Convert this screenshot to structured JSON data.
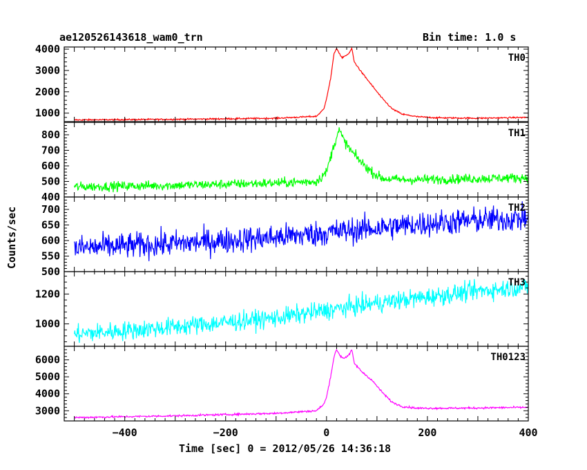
{
  "header": {
    "title": "ae120526143618_wam0_trn",
    "bin_time": "Bin time: 1.0 s"
  },
  "chart_data": {
    "type": "line",
    "xlabel": "Time [sec] 0 = 2012/05/26 14:36:18",
    "ylabel": "Counts/sec",
    "xlim": [
      -520,
      400
    ],
    "xticks": [
      -400,
      -200,
      0,
      200,
      400
    ],
    "xtick_labels": [
      "−400",
      "−200",
      "0",
      "200",
      "400"
    ],
    "line_width_note": "",
    "panels": [
      {
        "name": "TH0",
        "color": "#ff0000",
        "ylim": [
          600,
          4100
        ],
        "yticks": [
          1000,
          2000,
          3000,
          4000
        ],
        "ytick_labels": [
          "1000",
          "2000",
          "3000",
          "4000"
        ],
        "baseline": [
          [
            -500,
            680
          ],
          [
            -200,
            740
          ],
          [
            -50,
            800
          ],
          [
            -10,
            950
          ]
        ],
        "noise": 25,
        "curve": [
          [
            -500,
            680
          ],
          [
            -300,
            710
          ],
          [
            -100,
            760
          ],
          [
            -20,
            850
          ],
          [
            -5,
            1200
          ],
          [
            0,
            1700
          ],
          [
            8,
            2600
          ],
          [
            15,
            3800
          ],
          [
            20,
            4050
          ],
          [
            25,
            3800
          ],
          [
            30,
            3600
          ],
          [
            38,
            3700
          ],
          [
            45,
            3800
          ],
          [
            50,
            4050
          ],
          [
            55,
            3400
          ],
          [
            70,
            2900
          ],
          [
            90,
            2300
          ],
          [
            110,
            1700
          ],
          [
            130,
            1200
          ],
          [
            150,
            950
          ],
          [
            180,
            830
          ],
          [
            220,
            780
          ],
          [
            300,
            760
          ],
          [
            400,
            800
          ]
        ]
      },
      {
        "name": "TH1",
        "color": "#00ff00",
        "ylim": [
          400,
          880
        ],
        "yticks": [
          400,
          500,
          600,
          700,
          800
        ],
        "ytick_labels": [
          "400",
          "500",
          "600",
          "700",
          "800"
        ],
        "noise": 22,
        "curve": [
          [
            -500,
            465
          ],
          [
            -300,
            475
          ],
          [
            -100,
            490
          ],
          [
            -20,
            500
          ],
          [
            0,
            560
          ],
          [
            10,
            680
          ],
          [
            20,
            790
          ],
          [
            25,
            830
          ],
          [
            35,
            760
          ],
          [
            50,
            690
          ],
          [
            70,
            620
          ],
          [
            90,
            560
          ],
          [
            110,
            520
          ],
          [
            150,
            510
          ],
          [
            250,
            515
          ],
          [
            400,
            525
          ]
        ]
      },
      {
        "name": "TH2",
        "color": "#0000ff",
        "ylim": [
          500,
          740
        ],
        "yticks": [
          500,
          550,
          600,
          650,
          700
        ],
        "ytick_labels": [
          "500",
          "550",
          "600",
          "650",
          "700"
        ],
        "noise": 30,
        "curve": [
          [
            -500,
            575
          ],
          [
            -300,
            590
          ],
          [
            -100,
            610
          ],
          [
            0,
            625
          ],
          [
            100,
            640
          ],
          [
            200,
            655
          ],
          [
            300,
            665
          ],
          [
            400,
            672
          ]
        ]
      },
      {
        "name": "TH3",
        "color": "#00ffff",
        "ylim": [
          850,
          1350
        ],
        "yticks": [
          1000,
          1200
        ],
        "ytick_labels": [
          "1000",
          "1200"
        ],
        "noise": 45,
        "curve": [
          [
            -500,
            930
          ],
          [
            -300,
            980
          ],
          [
            -100,
            1040
          ],
          [
            0,
            1090
          ],
          [
            100,
            1140
          ],
          [
            200,
            1180
          ],
          [
            300,
            1220
          ],
          [
            400,
            1250
          ]
        ]
      },
      {
        "name": "TH0123",
        "color": "#ff00ff",
        "ylim": [
          2400,
          6800
        ],
        "yticks": [
          3000,
          4000,
          5000,
          6000
        ],
        "ytick_labels": [
          "3000",
          "4000",
          "5000",
          "6000"
        ],
        "noise": 40,
        "curve": [
          [
            -500,
            2600
          ],
          [
            -300,
            2700
          ],
          [
            -100,
            2850
          ],
          [
            -20,
            3000
          ],
          [
            -5,
            3400
          ],
          [
            0,
            3800
          ],
          [
            8,
            5000
          ],
          [
            15,
            6200
          ],
          [
            20,
            6600
          ],
          [
            28,
            6200
          ],
          [
            35,
            6100
          ],
          [
            45,
            6300
          ],
          [
            50,
            6600
          ],
          [
            55,
            5800
          ],
          [
            70,
            5300
          ],
          [
            90,
            4800
          ],
          [
            110,
            4100
          ],
          [
            130,
            3500
          ],
          [
            150,
            3250
          ],
          [
            180,
            3150
          ],
          [
            250,
            3150
          ],
          [
            400,
            3200
          ]
        ]
      }
    ]
  }
}
